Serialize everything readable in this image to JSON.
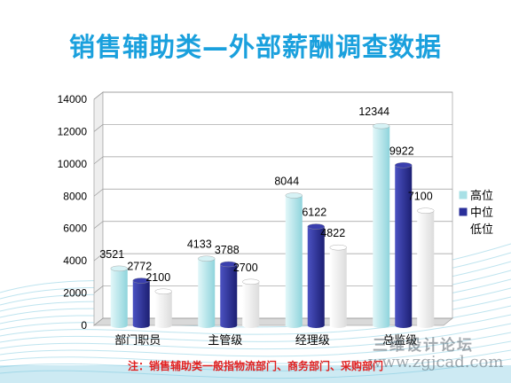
{
  "title": "销售辅助类—外部薪酬调查数据",
  "note": "注：销售辅助类一般指物流部门、商务部门、采购部门",
  "watermark": {
    "brand": "三维设计论坛",
    "url": "www.zgjcad.com"
  },
  "colors": {
    "title": "#1aa0dd",
    "note": "#e02020",
    "high": "#a8e0e6",
    "mid": "#2a2f9a",
    "low": "#f4f4f4",
    "wave": "#6fc3dc"
  },
  "chart_data": {
    "type": "bar",
    "categories": [
      "部门职员",
      "主管级",
      "经理级",
      "总监级"
    ],
    "series": [
      {
        "name": "高位",
        "values": [
          3521,
          4133,
          8044,
          12344
        ]
      },
      {
        "name": "中位",
        "values": [
          2772,
          3788,
          6122,
          9922
        ]
      },
      {
        "name": "低位",
        "values": [
          2100,
          2700,
          4822,
          7100
        ]
      }
    ],
    "yticks": [
      0,
      2000,
      4000,
      6000,
      8000,
      10000,
      12000,
      14000
    ],
    "ylim": [
      0,
      14000
    ],
    "grid": true,
    "legend": "right",
    "data_labels": true
  }
}
